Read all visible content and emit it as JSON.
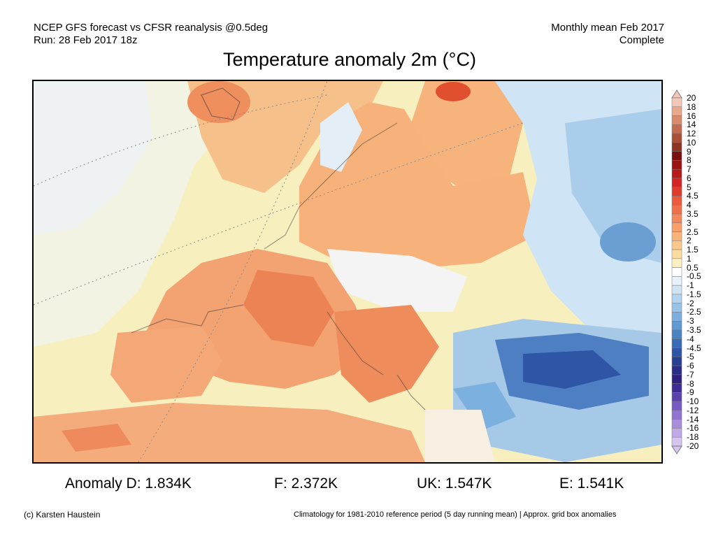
{
  "header": {
    "left_line1": "NCEP GFS forecast vs CFSR reanalysis @0.5deg",
    "left_line2": "Run: 28 Feb 2017 18z",
    "right_line1": "Monthly mean Feb 2017",
    "right_line2": "Complete"
  },
  "title": "Temperature anomaly 2m (°C)",
  "colorbar": {
    "labels": [
      "20",
      "18",
      "16",
      "14",
      "12",
      "10",
      "9",
      "8",
      "7",
      "6",
      "5",
      "4.5",
      "4",
      "3.5",
      "3",
      "2.5",
      "2",
      "1.5",
      "1",
      "0.5",
      "-0.5",
      "-1",
      "-1.5",
      "-2",
      "-2.5",
      "-3",
      "-3.5",
      "-4",
      "-4.5",
      "-5",
      "-6",
      "-7",
      "-8",
      "-9",
      "-10",
      "-12",
      "-14",
      "-16",
      "-18",
      "-20"
    ],
    "colors": [
      "#f3c8b8",
      "#e8a88e",
      "#d98a6d",
      "#c36b4f",
      "#a94f36",
      "#8d3522",
      "#7a0f0f",
      "#9b1212",
      "#b81a1a",
      "#d22424",
      "#e03c2e",
      "#ea5a3c",
      "#f0704a",
      "#f4885a",
      "#f7a06a",
      "#f9b47a",
      "#fbc88c",
      "#fcdc9e",
      "#fdf0c0",
      "#ffffff",
      "#e6f1fa",
      "#cfe4f5",
      "#b4d4ee",
      "#98c2e6",
      "#7cb0de",
      "#6199d2",
      "#4a82c4",
      "#3a6bb6",
      "#2f55a6",
      "#283f94",
      "#2a2d86",
      "#2d2080",
      "#3f2c94",
      "#5a42ad",
      "#7659c2",
      "#9173d0",
      "#a98ddc",
      "#c0a9e6",
      "#d5c5ef"
    ]
  },
  "stats": {
    "anomaly_d": "Anomaly D: 1.834K",
    "f": "F: 2.372K",
    "uk": "UK: 1.547K",
    "e": "E: 1.541K"
  },
  "footer": {
    "left": "(c) Karsten Haustein",
    "right": "Climatology for 1981-2010 reference period (5 day running mean) | Approx. grid box anomalies"
  }
}
